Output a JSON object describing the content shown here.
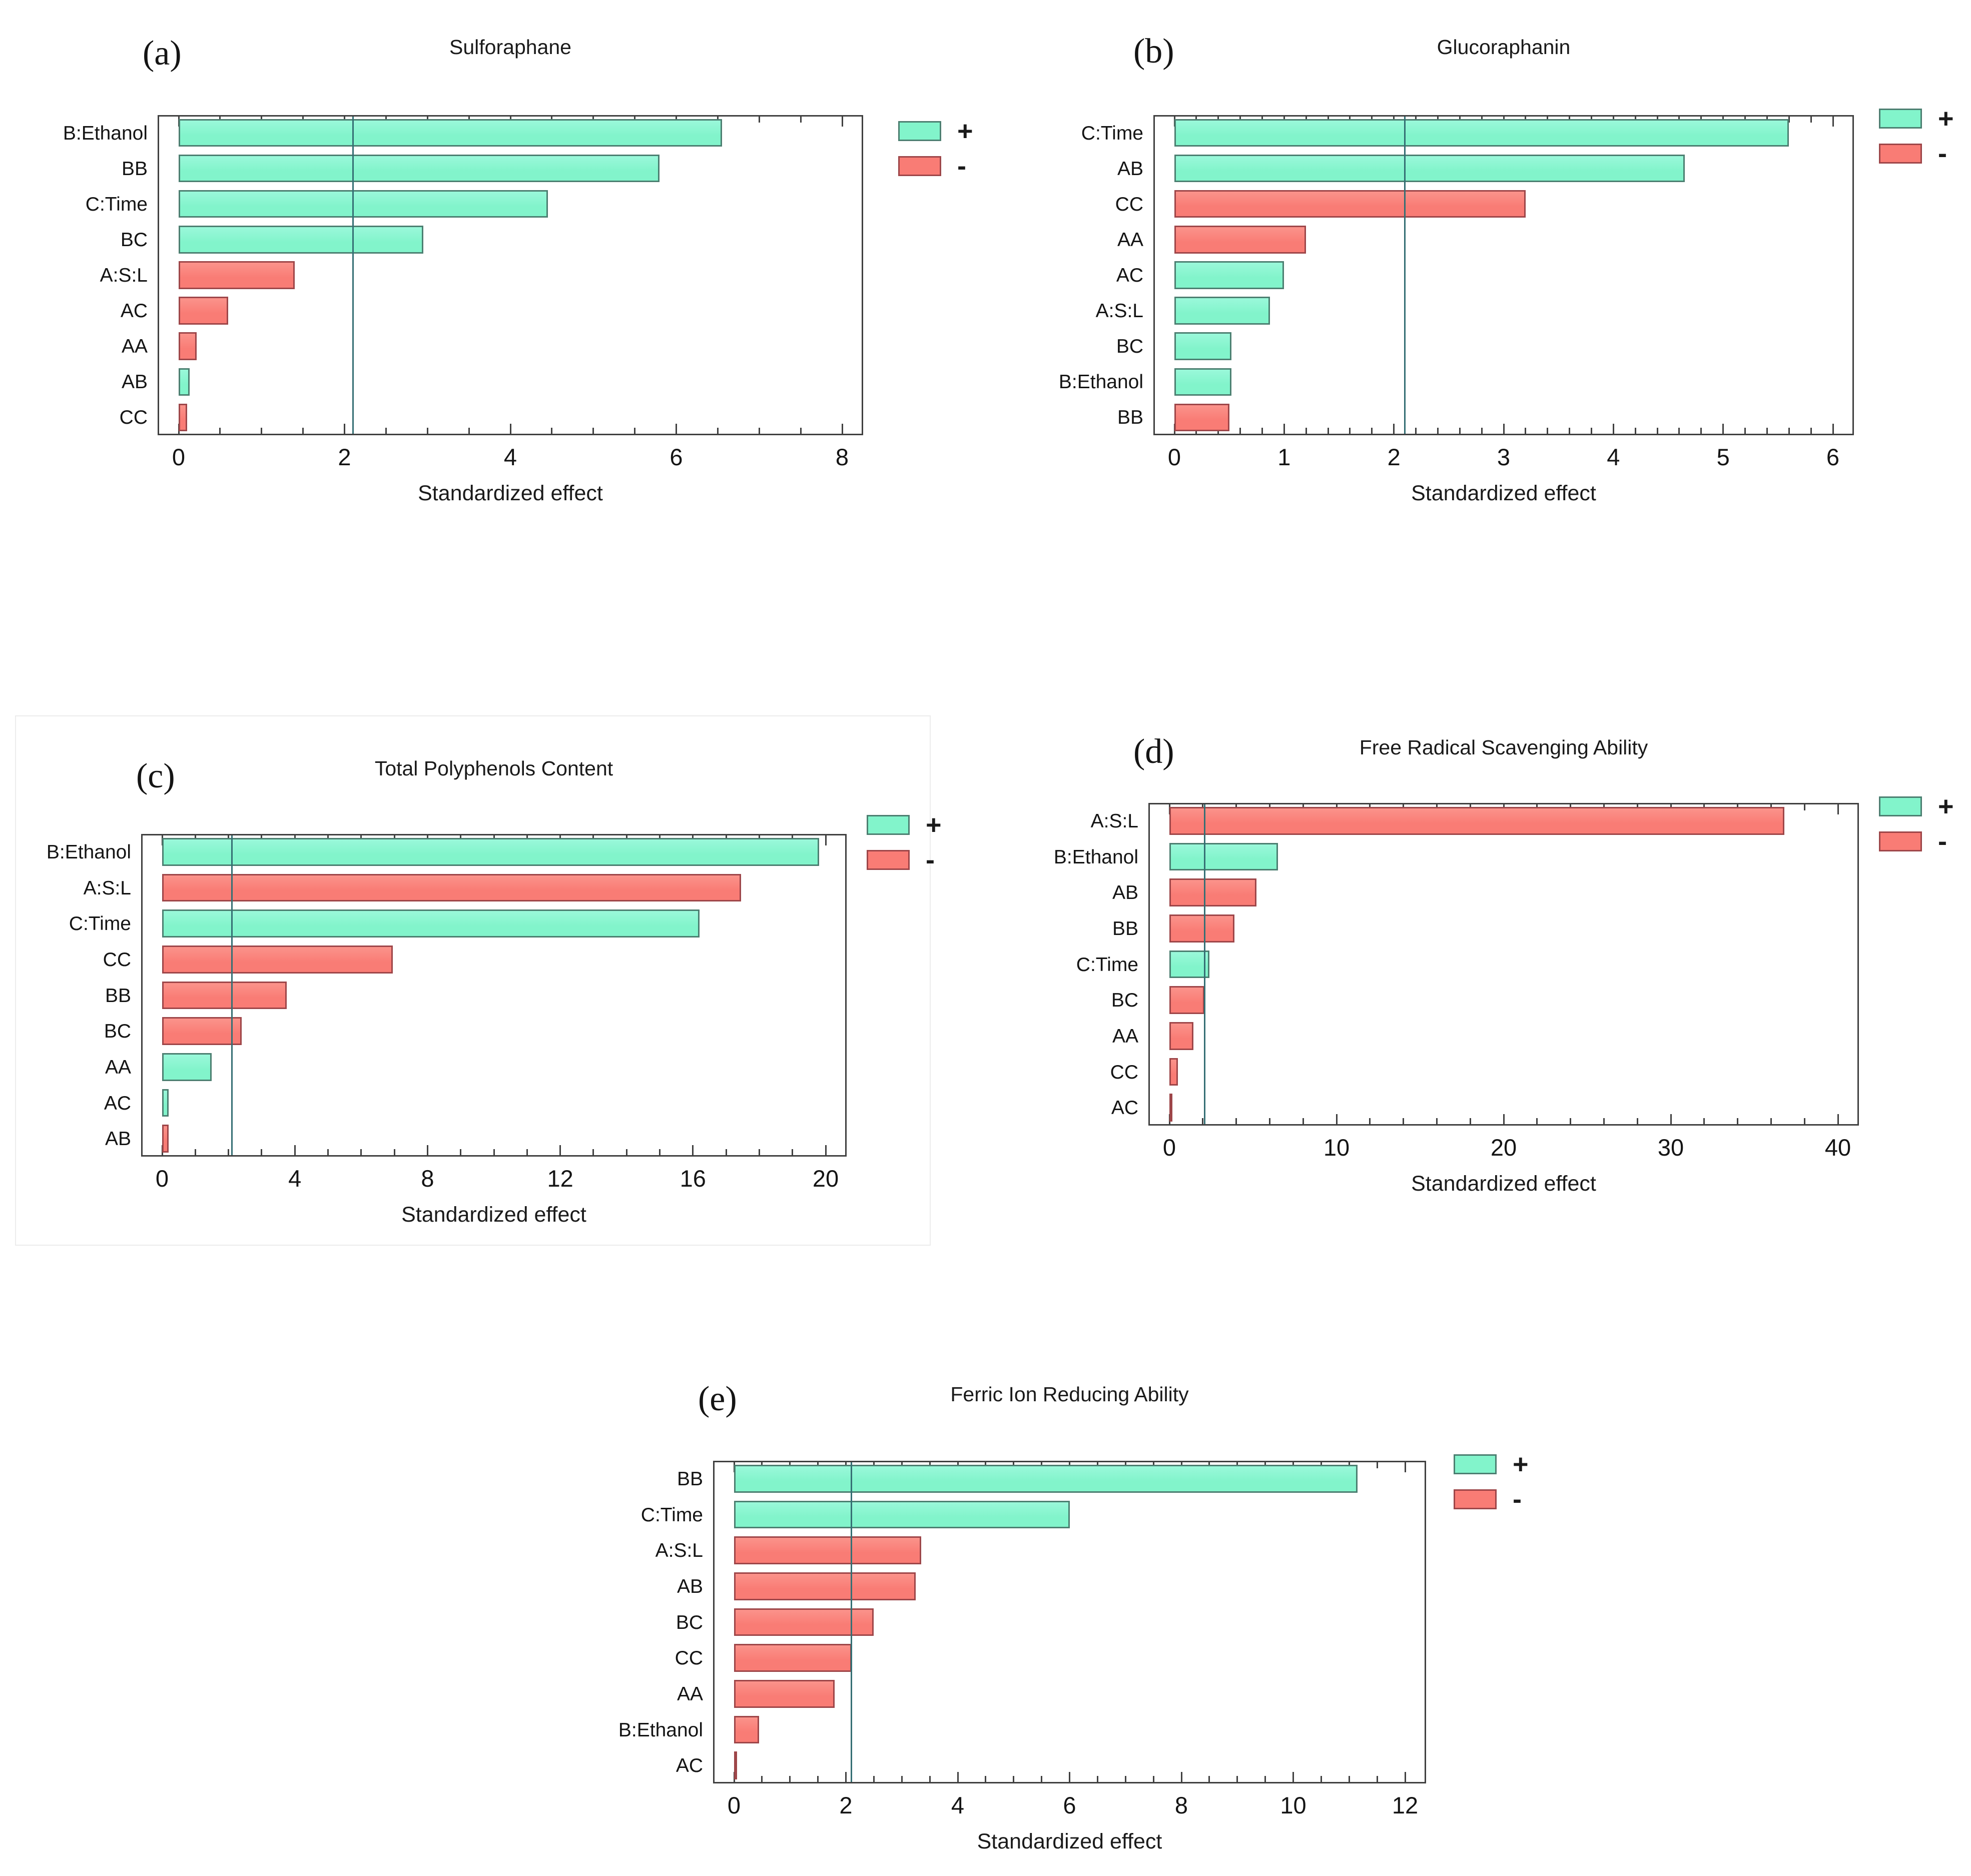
{
  "page": {
    "background": "#ffffff"
  },
  "colors": {
    "positive_fill": "#82F4CB",
    "positive_fill_light": "#9AF8DA",
    "positive_border": "#4C7F71",
    "negative_fill": "#F97C75",
    "negative_fill_light": "#FB938B",
    "negative_border": "#9E4649",
    "reference_line": "#356F74",
    "axis": "#404040",
    "text": "#1C1C1C",
    "panel_c_border": "#ECECEC"
  },
  "legend": {
    "positive_label": "+",
    "negative_label": "-"
  },
  "chart_data": [
    {
      "id": "a",
      "letter": "(a)",
      "type": "bar",
      "orientation": "horizontal",
      "title": "Sulforaphane",
      "xlabel": "Standardized effect",
      "xlim": [
        0,
        8
      ],
      "major_tick_step": 2,
      "minor_tick_step": 0.5,
      "reference_line": 2.1,
      "legend_position": "right",
      "grid": false,
      "categories": [
        "B:Ethanol",
        "BB",
        "C:Time",
        "BC",
        "A:S:L",
        "AC",
        "AA",
        "AB",
        "CC"
      ],
      "values": [
        6.55,
        5.8,
        4.45,
        2.95,
        1.4,
        0.6,
        0.22,
        0.13,
        0.1
      ],
      "signs": [
        "+",
        "+",
        "+",
        "+",
        "-",
        "-",
        "-",
        "+",
        "-"
      ]
    },
    {
      "id": "b",
      "letter": "(b)",
      "type": "bar",
      "orientation": "horizontal",
      "title": "Glucoraphanin",
      "xlabel": "Standardized effect",
      "xlim": [
        0,
        6
      ],
      "major_tick_step": 1,
      "minor_tick_step": 0.2,
      "reference_line": 2.1,
      "legend_position": "right",
      "grid": false,
      "categories": [
        "C:Time",
        "AB",
        "CC",
        "AA",
        "AC",
        "A:S:L",
        "BC",
        "B:Ethanol",
        "BB"
      ],
      "values": [
        5.6,
        4.65,
        3.2,
        1.2,
        1.0,
        0.87,
        0.52,
        0.52,
        0.5
      ],
      "signs": [
        "+",
        "+",
        "-",
        "-",
        "+",
        "+",
        "+",
        "+",
        "-"
      ]
    },
    {
      "id": "c",
      "letter": "(c)",
      "type": "bar",
      "orientation": "horizontal",
      "title": "Total Polyphenols Content",
      "xlabel": "Standardized effect",
      "xlim": [
        0,
        20
      ],
      "major_tick_step": 4,
      "minor_tick_step": 1,
      "reference_line": 2.1,
      "legend_position": "right",
      "grid": false,
      "categories": [
        "B:Ethanol",
        "A:S:L",
        "C:Time",
        "CC",
        "BB",
        "BC",
        "AA",
        "AC",
        "AB"
      ],
      "values": [
        19.8,
        17.45,
        16.2,
        6.95,
        3.75,
        2.4,
        1.5,
        0.2,
        0.2
      ],
      "signs": [
        "+",
        "-",
        "+",
        "-",
        "-",
        "-",
        "+",
        "+",
        "-"
      ]
    },
    {
      "id": "d",
      "letter": "(d)",
      "type": "bar",
      "orientation": "horizontal",
      "title": "Free Radical Scavenging Ability",
      "xlabel": "Standardized effect",
      "xlim": [
        0,
        40
      ],
      "major_tick_step": 10,
      "minor_tick_step": 2,
      "reference_line": 2.1,
      "legend_position": "right",
      "grid": false,
      "categories": [
        "A:S:L",
        "B:Ethanol",
        "AB",
        "BB",
        "C:Time",
        "BC",
        "AA",
        "CC",
        "AC"
      ],
      "values": [
        36.8,
        6.5,
        5.2,
        3.9,
        2.4,
        2.1,
        1.45,
        0.5,
        0.08
      ],
      "signs": [
        "-",
        "+",
        "-",
        "-",
        "+",
        "-",
        "-",
        "-",
        "-"
      ]
    },
    {
      "id": "e",
      "letter": "(e)",
      "type": "bar",
      "orientation": "horizontal",
      "title": "Ferric Ion Reducing Ability",
      "xlabel": "Standardized effect",
      "xlim": [
        0,
        12
      ],
      "major_tick_step": 2,
      "minor_tick_step": 0.5,
      "reference_line": 2.1,
      "legend_position": "right",
      "grid": false,
      "categories": [
        "BB",
        "C:Time",
        "A:S:L",
        "AB",
        "BC",
        "CC",
        "AA",
        "B:Ethanol",
        "AC"
      ],
      "values": [
        11.15,
        6.0,
        3.35,
        3.25,
        2.5,
        2.1,
        1.8,
        0.45,
        0.05
      ],
      "signs": [
        "+",
        "+",
        "-",
        "-",
        "-",
        "-",
        "-",
        "-",
        "-"
      ]
    }
  ]
}
